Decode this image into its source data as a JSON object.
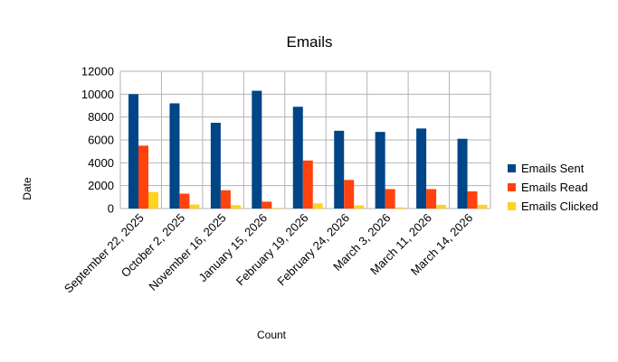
{
  "chart_data": {
    "type": "bar",
    "title": "Emails",
    "xlabel": "Count",
    "ylabel": "Date",
    "ylim": [
      0,
      12000
    ],
    "ytick_step": 2000,
    "grid": true,
    "legend_position": "right",
    "categories": [
      "September 22, 2025",
      "October 2, 2025",
      "November 16, 2025",
      "January 15, 2026",
      "February 19, 2026",
      "February 24, 2026",
      "March 3, 2026",
      "March 11, 2026",
      "March 14, 2026"
    ],
    "series": [
      {
        "name": "Emails Sent",
        "color": "#004586",
        "values": [
          10000,
          9200,
          7500,
          10300,
          8900,
          6800,
          6700,
          7000,
          6100
        ]
      },
      {
        "name": "Emails Read",
        "color": "#ff420e",
        "values": [
          5500,
          1300,
          1600,
          600,
          4200,
          2500,
          1700,
          1700,
          1500
        ]
      },
      {
        "name": "Emails Clicked",
        "color": "#ffd320",
        "values": [
          1450,
          350,
          300,
          50,
          450,
          280,
          100,
          320,
          330
        ]
      }
    ]
  }
}
